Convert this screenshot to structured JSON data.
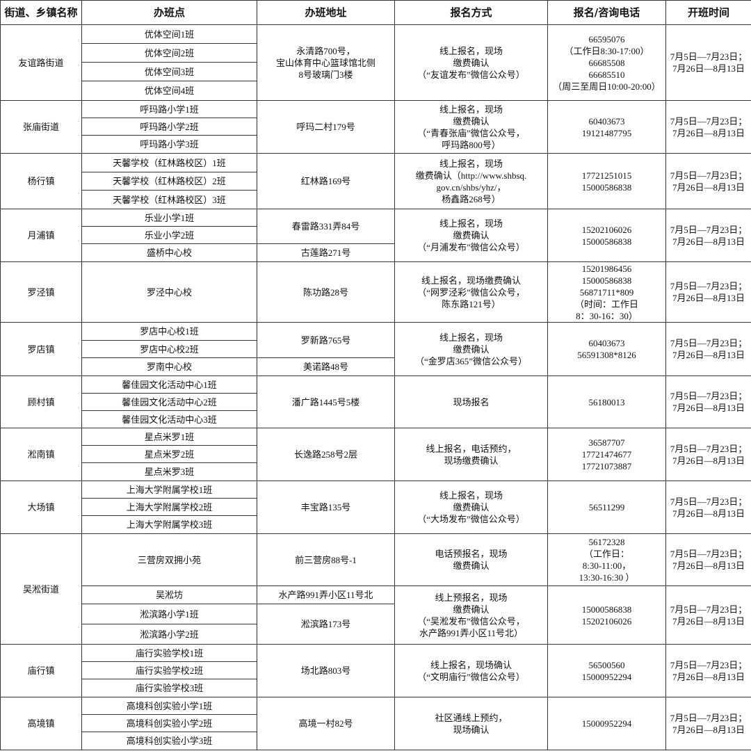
{
  "table": {
    "headers": [
      "街道、乡镇名称",
      "办班点",
      "办班地址",
      "报名方式",
      "报名/咨询电话",
      "开班时间"
    ],
    "groups": [
      {
        "district": "友谊路街道",
        "sites": [
          "优体空间1班",
          "优体空间2班",
          "优体空间3班",
          "优体空间4班"
        ],
        "addresses": [
          "永清路700号，\n宝山体育中心篮球馆北侧\n8号玻璃门3楼"
        ],
        "methods": [
          "线上报名，现场\n缴费确认\n（“友谊发布”微信公众号）"
        ],
        "phones": [
          "66595076\n（工作日8:30-17:00）\n66685508\n66685510\n（周三至周日10:00-20:00）"
        ],
        "times": [
          "7月5日—7月23日；\n7月26日—8月13日"
        ]
      },
      {
        "district": "张庙街道",
        "sites": [
          "呼玛路小学1班",
          "呼玛路小学2班",
          "呼玛路小学3班"
        ],
        "addresses": [
          "呼玛二村179号"
        ],
        "methods": [
          "线上报名，现场\n缴费确认\n（“青春张庙”微信公众号，\n呼玛路800号）"
        ],
        "phones": [
          "60403673\n19121487795"
        ],
        "times": [
          "7月5日—7月23日；\n7月26日—8月13日"
        ]
      },
      {
        "district": "杨行镇",
        "sites": [
          "天馨学校（红林路校区）1班",
          "天馨学校（红林路校区）2班",
          "天馨学校（红林路校区）3班"
        ],
        "addresses": [
          "红林路169号"
        ],
        "methods": [
          "线上报名，现场\n缴费确认（http://www.shbsq.\ngov.cn/shbs/yhz/，\n杨鑫路268号）"
        ],
        "phones": [
          "17721251015\n15000586838"
        ],
        "times": [
          "7月5日—7月23日；\n7月26日—8月13日"
        ]
      },
      {
        "district": "月浦镇",
        "sites": [
          "乐业小学1班",
          "乐业小学2班",
          "盛桥中心校"
        ],
        "addresses": [
          "春雷路331弄84号",
          "古莲路271号"
        ],
        "methods": [
          "线上报名，现场\n缴费确认\n（“月浦发布”微信公众号）"
        ],
        "phones": [
          "15202106026\n15000586838"
        ],
        "times": [
          "7月5日—7月23日；\n7月26日—8月13日"
        ]
      },
      {
        "district": "罗泾镇",
        "sites": [
          "罗泾中心校"
        ],
        "addresses": [
          "陈功路28号"
        ],
        "methods": [
          "线上报名，现场缴费确认\n（“网罗泾彩”微信公众号，\n陈东路121号）"
        ],
        "phones": [
          "15201986456\n15000586838\n56871711*809\n（时间：工作日\n8：30-16：30）"
        ],
        "times": [
          "7月5日—7月23日；\n7月26日—8月13日"
        ]
      },
      {
        "district": "罗店镇",
        "sites": [
          "罗店中心校1班",
          "罗店中心校2班",
          "罗南中心校"
        ],
        "addresses": [
          "罗新路765号",
          "美诺路48号"
        ],
        "methods": [
          "线上报名，现场\n缴费确认\n（“金罗店365”微信公众号）"
        ],
        "phones": [
          "60403673\n56591308*8126"
        ],
        "times": [
          "7月5日—7月23日；\n7月26日—8月13日"
        ]
      },
      {
        "district": "顾村镇",
        "sites": [
          "馨佳园文化活动中心1班",
          "馨佳园文化活动中心2班",
          "馨佳园文化活动中心3班"
        ],
        "addresses": [
          "潘广路1445号5楼"
        ],
        "methods": [
          "现场报名"
        ],
        "phones": [
          "56180013"
        ],
        "times": [
          "7月5日—7月23日；\n7月26日—8月13日"
        ]
      },
      {
        "district": "淞南镇",
        "sites": [
          "星点米罗1班",
          "星点米罗2班",
          "星点米罗3班"
        ],
        "addresses": [
          "长逸路258号2层"
        ],
        "methods": [
          "线上报名，电话预约，\n现场缴费确认"
        ],
        "phones": [
          "36587707\n17721474677\n17721073887"
        ],
        "times": [
          "7月5日—7月23日；\n7月26日—8月13日"
        ]
      },
      {
        "district": "大场镇",
        "sites": [
          "上海大学附属学校1班",
          "上海大学附属学校2班",
          "上海大学附属学校3班"
        ],
        "addresses": [
          "丰宝路135号"
        ],
        "methods": [
          "线上报名，现场\n缴费确认\n（“大场发布”微信公众号）"
        ],
        "phones": [
          "56511299"
        ],
        "times": [
          "7月5日—7月23日；\n7月26日—8月13日"
        ]
      },
      {
        "district": "吴淞街道",
        "sites": [
          "三营房双拥小苑",
          "吴淞坊",
          "淞滨路小学1班",
          "淞滨路小学2班"
        ],
        "addresses": [
          "前三营房88号-1",
          "水产路991弄小区11号北",
          "淞滨路173号"
        ],
        "methods": [
          "电话预报名，现场\n缴费确认",
          "线上预报名，现场\n缴费确认\n（“吴淞发布”微信公众号，\n水产路991弄小区11号北）"
        ],
        "phones": [
          "56172328\n（工作日：\n8:30-11:00，\n13:30-16:30 ）",
          "15000586838\n15202106026"
        ],
        "times": [
          "7月5日—7月23日；\n7月26日—8月13日",
          "7月5日—7月23日；\n7月26日—8月13日"
        ]
      },
      {
        "district": "庙行镇",
        "sites": [
          "庙行实验学校1班",
          "庙行实验学校2班",
          "庙行实验学校3班"
        ],
        "addresses": [
          "场北路803号"
        ],
        "methods": [
          "线上报名，现场确认\n（“文明庙行”微信公众号）"
        ],
        "phones": [
          "56500560\n15000952294"
        ],
        "times": [
          "7月5日—7月23日；\n7月26日—8月13日"
        ]
      },
      {
        "district": "高境镇",
        "sites": [
          "高境科创实验小学1班",
          "高境科创实验小学2班",
          "高境科创实验小学3班"
        ],
        "addresses": [
          "高境一村82号"
        ],
        "methods": [
          "社区通线上预约，\n现场确认"
        ],
        "phones": [
          "15000952294"
        ],
        "times": [
          "7月5日—7月23日；\n7月26日—8月13日"
        ]
      }
    ]
  }
}
